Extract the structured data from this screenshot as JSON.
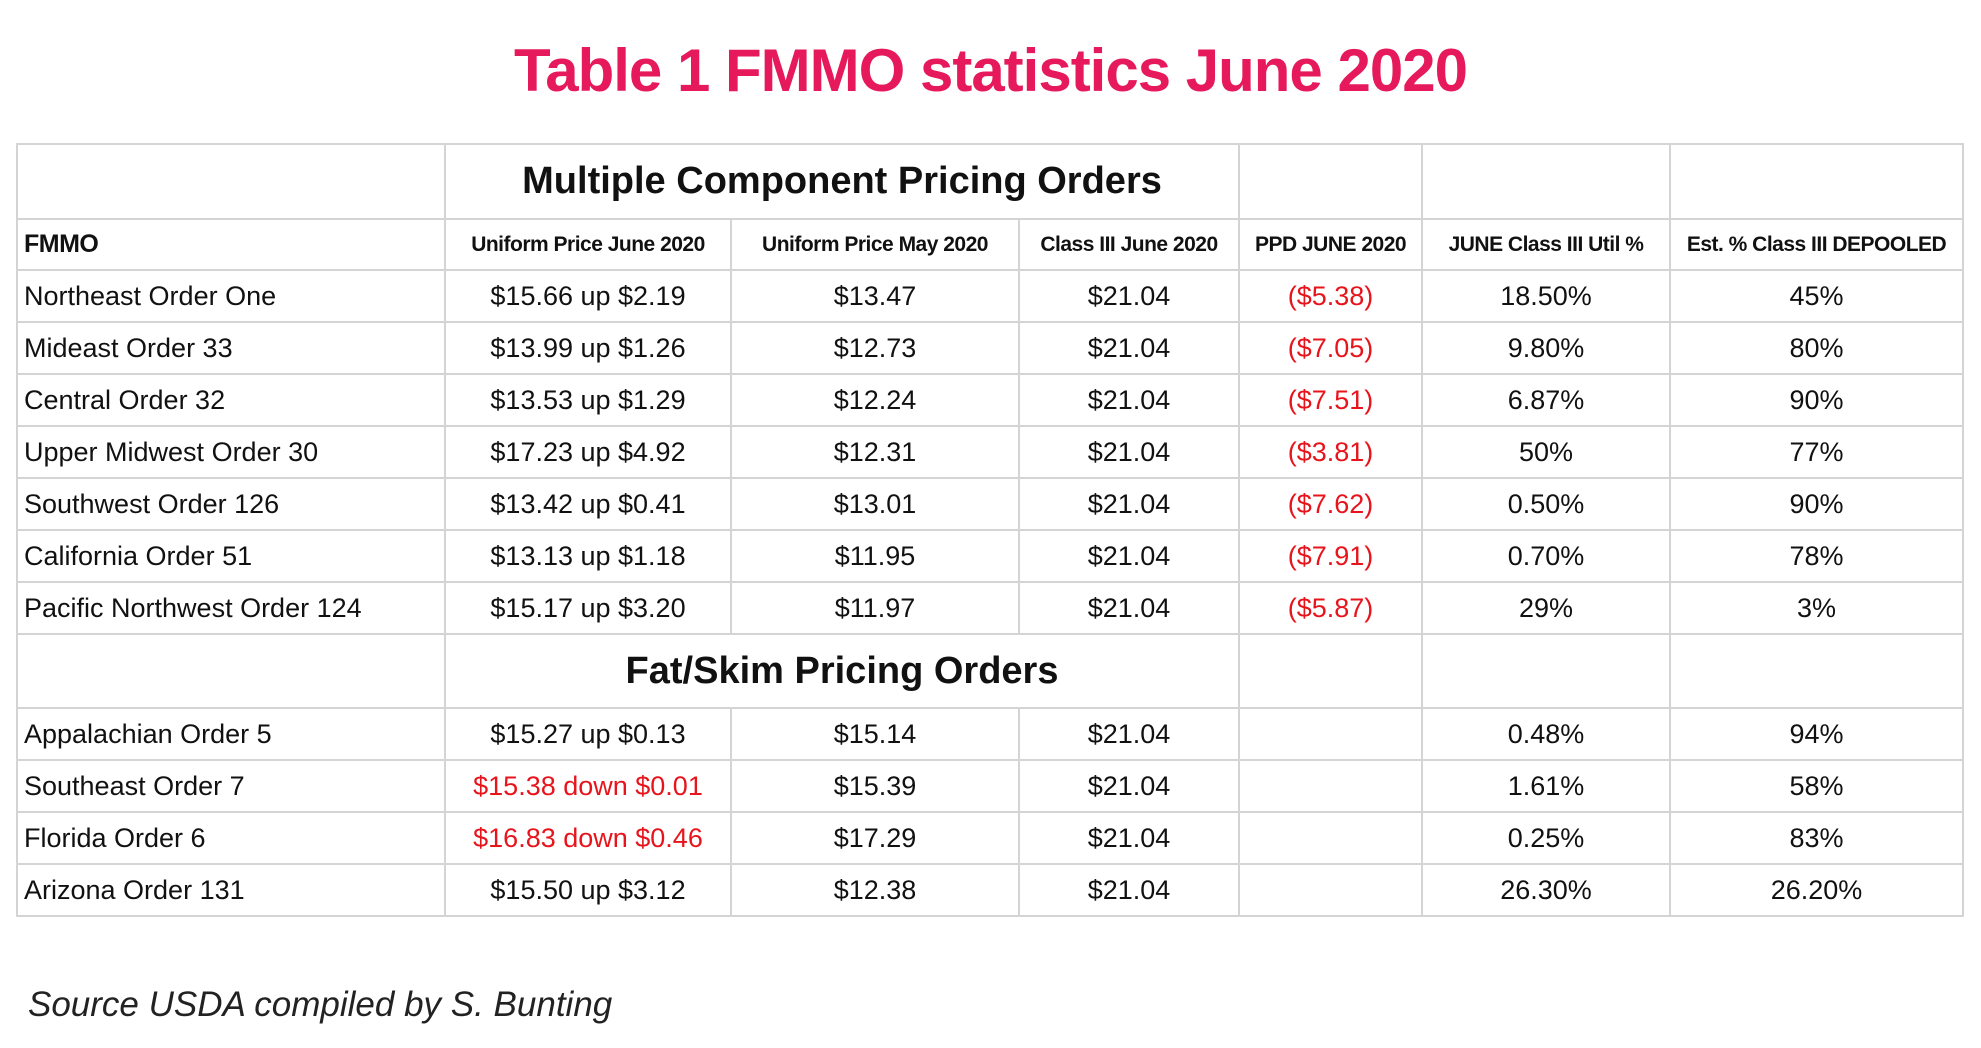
{
  "title": "Table 1 FMMO statistics June 2020",
  "table": {
    "columns": [
      "FMMO",
      "Uniform Price June 2020",
      "Uniform Price May 2020",
      "Class III June 2020",
      "PPD JUNE 2020",
      "JUNE Class III Util %",
      "Est. % Class III DEPOOLED"
    ],
    "sections": [
      {
        "heading": "Multiple Component Pricing Orders",
        "rows": [
          [
            "Northeast Order One",
            "$15.66 up $2.19",
            "$13.47",
            "$21.04",
            "($5.38)",
            "18.50%",
            "45%"
          ],
          [
            "Mideast Order 33",
            "$13.99 up $1.26",
            "$12.73",
            "$21.04",
            "($7.05)",
            "9.80%",
            "80%"
          ],
          [
            "Central Order 32",
            "$13.53 up $1.29",
            "$12.24",
            "$21.04",
            "($7.51)",
            "6.87%",
            "90%"
          ],
          [
            "Upper Midwest Order 30",
            "$17.23 up $4.92",
            "$12.31",
            "$21.04",
            "($3.81)",
            "50%",
            "77%"
          ],
          [
            "Southwest Order 126",
            "$13.42 up $0.41",
            "$13.01",
            "$21.04",
            "($7.62)",
            "0.50%",
            "90%"
          ],
          [
            "California Order 51",
            "$13.13 up $1.18",
            "$11.95",
            "$21.04",
            "($7.91)",
            "0.70%",
            "78%"
          ],
          [
            "Pacific Northwest Order 124",
            "$15.17 up $3.20",
            "$11.97",
            "$21.04",
            "($5.87)",
            "29%",
            "3%"
          ]
        ]
      },
      {
        "heading": "Fat/Skim Pricing Orders",
        "rows": [
          [
            "Appalachian Order 5",
            "$15.27 up $0.13",
            "$15.14",
            "$21.04",
            null,
            "0.48%",
            "94%"
          ],
          [
            "Southeast Order 7",
            "$15.38 down $0.01",
            "$15.39",
            "$21.04",
            null,
            "1.61%",
            "58%"
          ],
          [
            "Florida Order 6",
            "$16.83 down $0.46",
            "$17.29",
            "$21.04",
            null,
            "0.25%",
            "83%"
          ],
          [
            "Arizona Order 131",
            "$15.50 up $3.12",
            "$12.38",
            "$21.04",
            null,
            "26.30%",
            "26.20%"
          ]
        ]
      }
    ]
  },
  "source": "Source USDA compiled by S. Bunting"
}
